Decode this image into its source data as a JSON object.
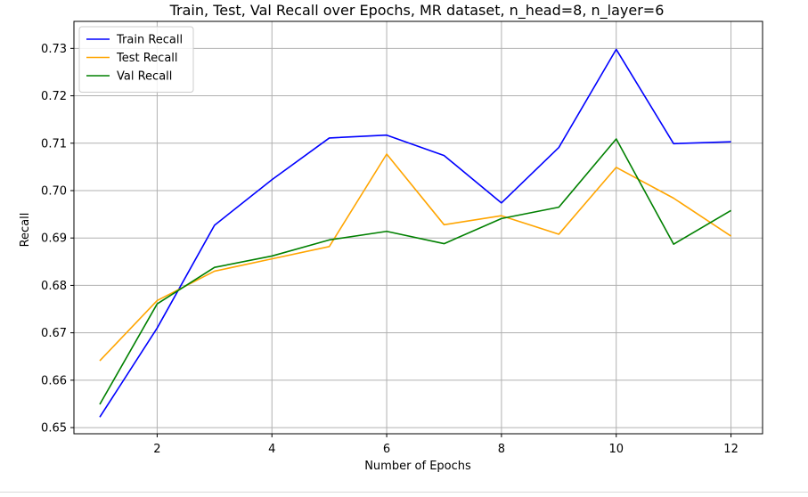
{
  "chart_data": {
    "type": "line",
    "title": "Train, Test, Val Recall over Epochs, MR dataset, n_head=8, n_layer=6",
    "xlabel": "Number of Epochs",
    "ylabel": "Recall",
    "x": [
      1,
      2,
      3,
      4,
      5,
      6,
      7,
      8,
      9,
      10,
      11,
      12
    ],
    "xlim": [
      0.55,
      12.55
    ],
    "ylim": [
      0.6487,
      0.7357
    ],
    "xticks": [
      "2",
      "4",
      "6",
      "8",
      "10",
      "12"
    ],
    "yticks": [
      "0.65",
      "0.66",
      "0.67",
      "0.68",
      "0.69",
      "0.70",
      "0.71",
      "0.72",
      "0.73"
    ],
    "grid": true,
    "legend_position": "top-left",
    "series": [
      {
        "name": "Train Recall",
        "color": "#0000ff",
        "values": [
          0.6522,
          0.671,
          0.6927,
          0.7023,
          0.7111,
          0.7117,
          0.7074,
          0.6974,
          0.7091,
          0.7298,
          0.7099,
          0.7103
        ]
      },
      {
        "name": "Test Recall",
        "color": "#ffa500",
        "values": [
          0.6641,
          0.6768,
          0.683,
          0.6856,
          0.6882,
          0.7077,
          0.6928,
          0.6947,
          0.6908,
          0.7049,
          0.6984,
          0.6904
        ]
      },
      {
        "name": "Val Recall",
        "color": "#008000",
        "values": [
          0.6549,
          0.6761,
          0.6838,
          0.6862,
          0.6896,
          0.6914,
          0.6888,
          0.6941,
          0.6965,
          0.7109,
          0.6887,
          0.6958
        ]
      }
    ]
  }
}
